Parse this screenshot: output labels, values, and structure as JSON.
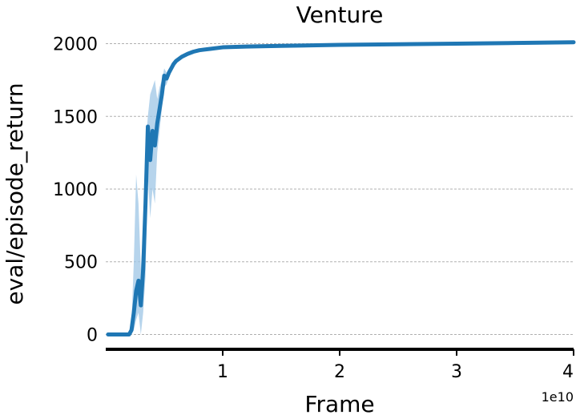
{
  "chart_data": {
    "type": "line",
    "title": "Venture",
    "xlabel": "Frame",
    "ylabel": "eval/episode_return",
    "x_offset_label": "1e10",
    "xlim": [
      0,
      4
    ],
    "ylim": [
      -80,
      2080
    ],
    "x_ticks": [
      1,
      2,
      3,
      4
    ],
    "x_tick_labels": [
      "1",
      "2",
      "3",
      "4"
    ],
    "y_ticks": [
      0,
      500,
      1000,
      1500,
      2000
    ],
    "y_tick_labels": [
      "0",
      "500",
      "1000",
      "1500",
      "2000"
    ],
    "grid": "horizontal-dashed",
    "colors": {
      "line": "#1f77b4",
      "band": "#9ec5e5"
    },
    "series": [
      {
        "x": [
          0.02,
          0.15,
          0.2,
          0.22,
          0.24,
          0.26,
          0.28,
          0.3,
          0.32,
          0.34,
          0.36,
          0.38,
          0.4,
          0.42,
          0.44,
          0.46,
          0.48,
          0.5,
          0.52,
          0.54,
          0.56,
          0.58,
          0.6,
          0.65,
          0.7,
          0.75,
          0.8,
          0.9,
          1.0,
          1.2,
          1.5,
          2.0,
          2.5,
          3.0,
          3.5,
          4.0
        ],
        "y": [
          0,
          0,
          0,
          30,
          150,
          300,
          370,
          200,
          450,
          900,
          1430,
          1200,
          1400,
          1300,
          1450,
          1550,
          1650,
          1780,
          1760,
          1800,
          1830,
          1860,
          1880,
          1910,
          1930,
          1945,
          1955,
          1965,
          1975,
          1980,
          1985,
          1992,
          1996,
          2000,
          2005,
          2010
        ],
        "lower": [
          0,
          0,
          -10,
          0,
          30,
          100,
          150,
          0,
          150,
          400,
          1100,
          800,
          1000,
          900,
          1250,
          1400,
          1550,
          1700,
          1720,
          1770,
          1810,
          1845,
          1865,
          1900,
          1920,
          1938,
          1948,
          1958,
          1968,
          1974,
          1979,
          1986,
          1990,
          1994,
          1998,
          2003
        ],
        "upper": [
          0,
          0,
          15,
          80,
          500,
          1100,
          900,
          450,
          700,
          1300,
          1500,
          1650,
          1700,
          1750,
          1620,
          1700,
          1750,
          1830,
          1800,
          1830,
          1850,
          1875,
          1895,
          1922,
          1940,
          1952,
          1962,
          1972,
          1982,
          1986,
          1991,
          1998,
          2002,
          2006,
          2012,
          2017
        ]
      }
    ]
  }
}
